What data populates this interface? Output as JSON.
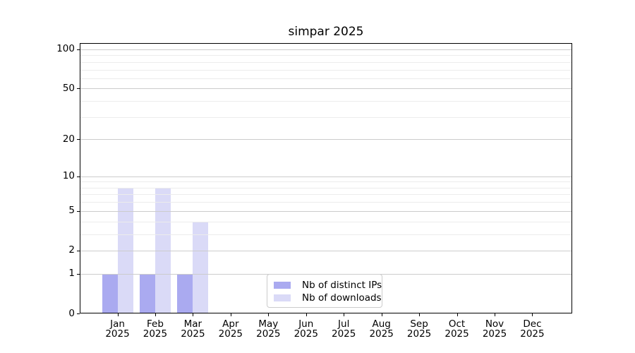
{
  "chart_data": {
    "type": "bar",
    "title": "simpar 2025",
    "categories": [
      "Jan",
      "Feb",
      "Mar",
      "Apr",
      "May",
      "Jun",
      "Jul",
      "Aug",
      "Sep",
      "Oct",
      "Nov",
      "Dec"
    ],
    "x_tick_year": "2025",
    "series": [
      {
        "name": "Nb of distinct IPs",
        "color": "#aaaaf0",
        "values": [
          1,
          1,
          1,
          0,
          0,
          0,
          0,
          0,
          0,
          0,
          0,
          0
        ]
      },
      {
        "name": "Nb of downloads",
        "color": "#dadaf7",
        "values": [
          8,
          8,
          4,
          0,
          0,
          0,
          0,
          0,
          0,
          0,
          0,
          0
        ]
      }
    ],
    "y_axis": {
      "scale": "log1p",
      "ticks": [
        0,
        1,
        2,
        5,
        10,
        20,
        50,
        100
      ],
      "minor_gridlines": [
        3,
        4,
        6,
        7,
        8,
        9,
        30,
        40,
        60,
        70,
        80,
        90
      ],
      "range": [
        0,
        112
      ]
    },
    "grid": "horizontal",
    "legend_position": "inside-bottom-center",
    "colors": {
      "major_grid": "#cccccc",
      "minor_grid": "#ececec",
      "axis": "#000000",
      "background": "#ffffff"
    }
  }
}
